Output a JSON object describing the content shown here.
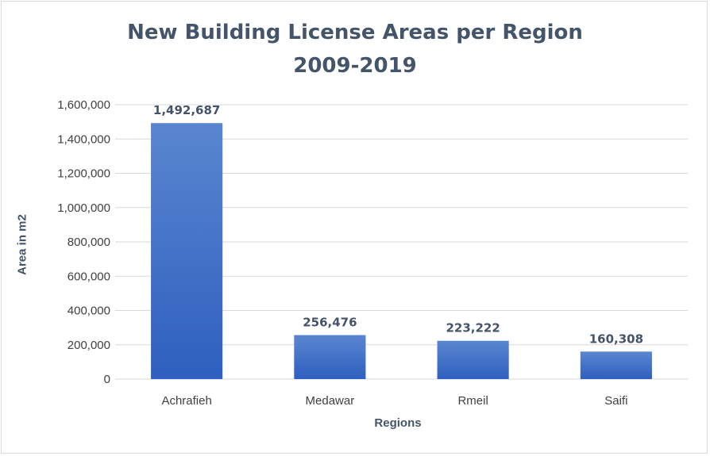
{
  "chart_data": {
    "type": "bar",
    "title": "New Building License Areas per Region",
    "subtitle": "2009-2019",
    "xlabel": "Regions",
    "ylabel": "Area in m2",
    "categories": [
      "Achrafieh",
      "Medawar",
      "Rmeil",
      "Saifi"
    ],
    "values": [
      1492687,
      256476,
      223222,
      160308
    ],
    "data_labels": [
      "1,492,687",
      "256,476",
      "223,222",
      "160,308"
    ],
    "ylim": [
      0,
      1600000
    ],
    "yticks": [
      0,
      200000,
      400000,
      600000,
      800000,
      1000000,
      1200000,
      1400000,
      1600000
    ],
    "ytick_labels": [
      "0",
      "200,000",
      "400,000",
      "600,000",
      "800,000",
      "1,000,000",
      "1,200,000",
      "1,400,000",
      "1,600,000"
    ],
    "grid": true,
    "legend": "none",
    "colors": {
      "bar_top": "#5a86d0",
      "bar_bottom": "#2f5fbf",
      "grid": "#d9d9d9",
      "title": "#44546a"
    }
  }
}
